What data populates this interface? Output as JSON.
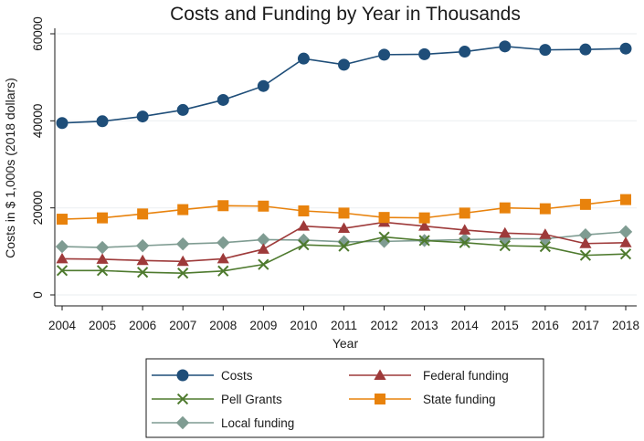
{
  "chart_data": {
    "type": "line",
    "title": "Costs and Funding by Year in Thousands",
    "xlabel": "Year",
    "ylabel": "Costs in $ 1,000s (2018 dollars)",
    "ylim": [
      0,
      60000
    ],
    "yticks": [
      0,
      20000,
      40000,
      60000
    ],
    "ytick_labels": [
      "0",
      "20000",
      "40000",
      "60000"
    ],
    "x": [
      2004,
      2005,
      2006,
      2007,
      2008,
      2009,
      2010,
      2011,
      2012,
      2013,
      2014,
      2015,
      2016,
      2017,
      2018
    ],
    "x_labels": [
      "2004",
      "2005",
      "2006",
      "2007",
      "2008",
      "2009",
      "2010",
      "2011",
      "2012",
      "2013",
      "2014",
      "2015",
      "2016",
      "2017",
      "2018"
    ],
    "grid": true,
    "legend_position": "bottom",
    "series": [
      {
        "name": "Costs",
        "marker": "circle",
        "color": "#1f4e79",
        "values": [
          39500,
          39900,
          41000,
          42500,
          44800,
          48000,
          54300,
          52900,
          55200,
          55300,
          55900,
          57100,
          56300,
          56400,
          56600
        ]
      },
      {
        "name": "Federal funding",
        "marker": "triangle",
        "color": "#9e3a3a",
        "values": [
          8300,
          8200,
          7900,
          7700,
          8300,
          10500,
          15800,
          15300,
          16700,
          15800,
          14900,
          14200,
          13900,
          11800,
          12000
        ]
      },
      {
        "name": "Pell Grants",
        "marker": "x",
        "color": "#4e7a2e",
        "values": [
          5600,
          5600,
          5200,
          5000,
          5500,
          7000,
          11500,
          11200,
          13300,
          12500,
          12000,
          11300,
          11100,
          9100,
          9400
        ]
      },
      {
        "name": "State funding",
        "marker": "square",
        "color": "#e8820c",
        "values": [
          17400,
          17700,
          18600,
          19600,
          20500,
          20400,
          19300,
          18800,
          17800,
          17700,
          18800,
          20000,
          19800,
          20800,
          21900
        ]
      },
      {
        "name": "Local funding",
        "marker": "diamond",
        "color": "#7f9c92",
        "values": [
          11100,
          10900,
          11300,
          11700,
          12000,
          12700,
          12600,
          12200,
          12300,
          12500,
          12700,
          12900,
          12900,
          13800,
          14500
        ]
      }
    ],
    "legend_order": [
      "Costs",
      "Federal funding",
      "Pell Grants",
      "State funding",
      "Local funding"
    ]
  }
}
